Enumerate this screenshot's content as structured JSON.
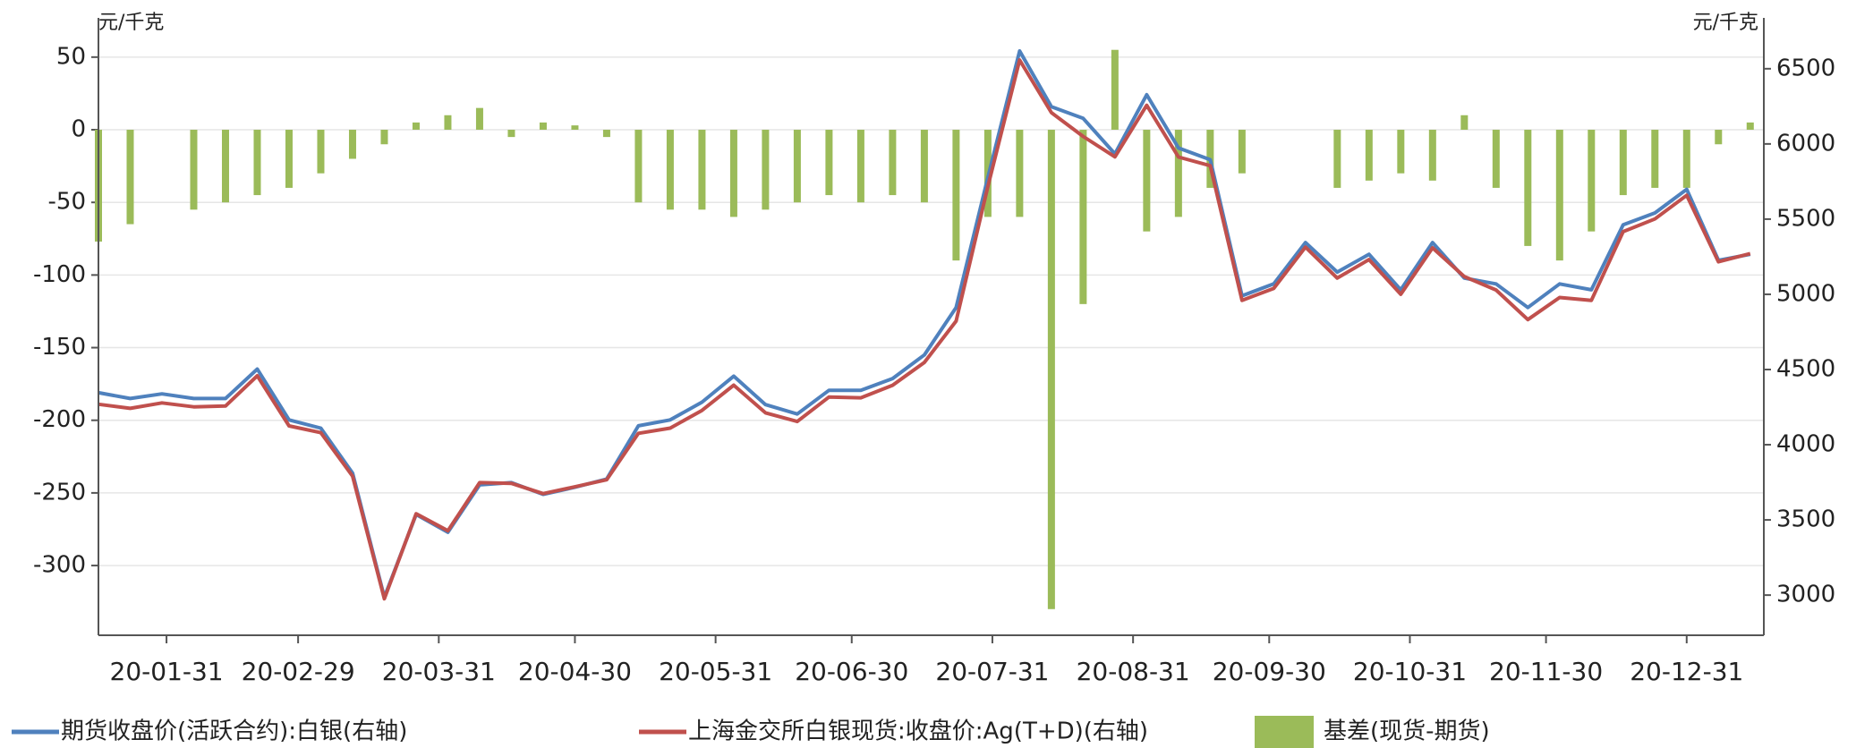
{
  "chart_data": {
    "type": "combo",
    "y_label": "元/千克",
    "y2_label": "元/千克",
    "x": [
      "20-01-16",
      "20-01-23",
      "20-01-30",
      "20-02-06",
      "20-02-13",
      "20-02-20",
      "20-02-27",
      "20-03-05",
      "20-03-12",
      "20-03-19",
      "20-03-26",
      "20-04-02",
      "20-04-09",
      "20-04-16",
      "20-04-23",
      "20-04-30",
      "20-05-07",
      "20-05-14",
      "20-05-21",
      "20-05-28",
      "20-06-04",
      "20-06-11",
      "20-06-18",
      "20-06-25",
      "20-07-02",
      "20-07-09",
      "20-07-16",
      "20-07-23",
      "20-07-30",
      "20-08-06",
      "20-08-13",
      "20-08-20",
      "20-08-27",
      "20-09-03",
      "20-09-10",
      "20-09-17",
      "20-09-24",
      "20-10-01",
      "20-10-08",
      "20-10-15",
      "20-10-22",
      "20-10-29",
      "20-11-05",
      "20-11-12",
      "20-11-19",
      "20-11-26",
      "20-12-03",
      "20-12-10",
      "20-12-17",
      "20-12-24",
      "20-12-31",
      "21-01-07",
      "21-01-14"
    ],
    "xlim": [
      "20-01-16",
      "21-01-17"
    ],
    "xticks": [
      "20-01-31",
      "20-02-29",
      "20-03-31",
      "20-04-30",
      "20-05-31",
      "20-06-30",
      "20-07-31",
      "20-08-31",
      "20-09-30",
      "20-10-31",
      "20-11-30",
      "20-12-31"
    ],
    "ylim": [
      -348,
      77
    ],
    "yticks": [
      50,
      0,
      -50,
      -100,
      -150,
      -200,
      -250,
      -300
    ],
    "y2lim": [
      2733,
      6838
    ],
    "y2ticks": [
      6500,
      6000,
      5500,
      5000,
      4500,
      4000,
      3500,
      3000
    ],
    "grid": true,
    "legend": "bottom",
    "series": [
      {
        "name": "期货收盘价(活跃合约):白银(右轴)",
        "type": "line",
        "axis": "y2",
        "color": "#4f81bd",
        "values": [
          4346,
          4307,
          4338,
          4307,
          4307,
          4503,
          4165,
          4110,
          3811,
          2986,
          3536,
          3418,
          3733,
          3748,
          3670,
          3717,
          3772,
          4126,
          4165,
          4283,
          4456,
          4267,
          4204,
          4362,
          4362,
          4440,
          4597,
          4912,
          5777,
          6618,
          6248,
          6170,
          5934,
          6327,
          5973,
          5895,
          4990,
          5069,
          5344,
          5148,
          5266,
          5030,
          5344,
          5108,
          5069,
          4912,
          5069,
          5030,
          5462,
          5541,
          5698,
          5226,
          5266
        ]
      },
      {
        "name": "上海金交所白银现货:收盘价:Ag(T+D)(右轴)",
        "type": "line",
        "axis": "y2",
        "color": "#c0504d",
        "values": [
          4269,
          4242,
          4278,
          4252,
          4257,
          4458,
          4125,
          4080,
          3791,
          2976,
          3541,
          3428,
          3748,
          3743,
          3675,
          3720,
          3767,
          4076,
          4110,
          4228,
          4396,
          4212,
          4154,
          4317,
          4312,
          4395,
          4547,
          4822,
          5717,
          6558,
          6208,
          6050,
          5914,
          6257,
          5913,
          5855,
          4960,
          5039,
          5314,
          5108,
          5231,
          5000,
          5309,
          5118,
          5029,
          4832,
          4979,
          4960,
          5417,
          5501,
          5658,
          5216,
          5271
        ]
      },
      {
        "name": "基差(现货-期货)",
        "type": "bar",
        "axis": "y",
        "color": "#9bbb59",
        "values": [
          -77,
          -65,
          null,
          -55,
          -50,
          -45,
          -40,
          -30,
          -20,
          -10,
          5,
          10,
          15,
          -5,
          5,
          3,
          -5,
          -50,
          -55,
          -55,
          -60,
          -55,
          -50,
          -45,
          -50,
          -45,
          -50,
          -90,
          -60,
          -60,
          -330,
          -120,
          55,
          -70,
          -60,
          -40,
          -30,
          null,
          null,
          -40,
          -35,
          -30,
          -35,
          10,
          -40,
          -80,
          -90,
          -70,
          -45,
          -40,
          -40,
          -10,
          5
        ]
      }
    ]
  }
}
